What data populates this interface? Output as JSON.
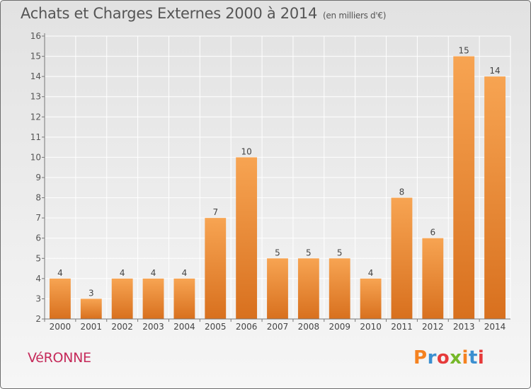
{
  "header": {
    "title": "Achats et Charges Externes 2000 à 2014",
    "subtitle": "(en milliers d'€)"
  },
  "footer": {
    "commune": "VéRONNE",
    "brand": "Proxiti",
    "brand_colors": [
      "#f58220",
      "#3b8fd0",
      "#e63a3a",
      "#76b82a",
      "#f58220",
      "#3b8fd0",
      "#e63a3a"
    ]
  },
  "chart_data": {
    "type": "bar",
    "title": "Achats et Charges Externes 2000 à 2014",
    "subtitle": "(en milliers d'€)",
    "categories": [
      "2000",
      "2001",
      "2002",
      "2003",
      "2004",
      "2005",
      "2006",
      "2007",
      "2008",
      "2009",
      "2010",
      "2011",
      "2012",
      "2013",
      "2014"
    ],
    "values": [
      4,
      3,
      4,
      4,
      4,
      7,
      10,
      5,
      5,
      5,
      4,
      8,
      6,
      15,
      14
    ],
    "ylim": [
      2,
      16
    ],
    "yticks": [
      2,
      3,
      4,
      5,
      6,
      7,
      8,
      9,
      10,
      11,
      12,
      13,
      14,
      15,
      16
    ],
    "grid": true,
    "bar_color_top": "#f7a452",
    "bar_color_bottom": "#d8701e"
  }
}
